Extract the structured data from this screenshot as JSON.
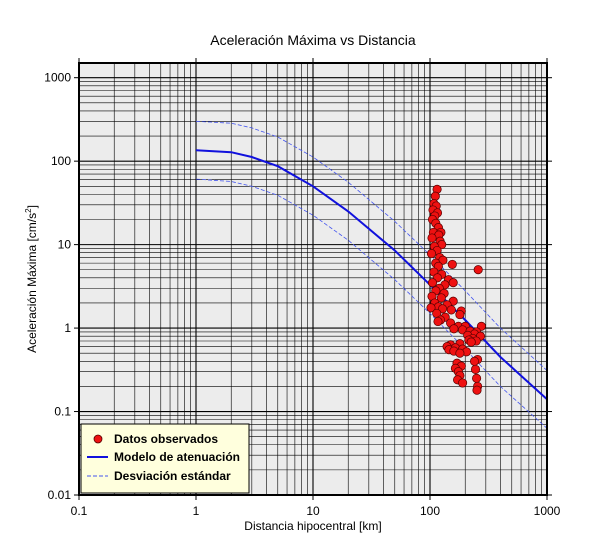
{
  "chart_data": {
    "type": "scatter",
    "title": "Aceleración Máxima vs Distancia",
    "xlabel": "Distancia hipocentral [km]",
    "ylabel_main": "Aceleración Máxima [cm/s",
    "ylabel_sup": "2",
    "ylabel_end": "]",
    "x_scale": "log",
    "y_scale": "log",
    "xlim": [
      0.1,
      1000
    ],
    "ylim": [
      0.01,
      1500
    ],
    "x_ticks": [
      {
        "value": 0.1,
        "label": "0.1"
      },
      {
        "value": 1,
        "label": "1"
      },
      {
        "value": 10,
        "label": "10"
      },
      {
        "value": 100,
        "label": "100"
      },
      {
        "value": 1000,
        "label": "1000"
      }
    ],
    "y_ticks": [
      {
        "value": 0.01,
        "label": "0.01"
      },
      {
        "value": 0.1,
        "label": "0.1"
      },
      {
        "value": 1,
        "label": "1"
      },
      {
        "value": 10,
        "label": "10"
      },
      {
        "value": 100,
        "label": "100"
      },
      {
        "value": 1000,
        "label": "1000"
      }
    ],
    "grid": true,
    "legend_position": "bottom-left",
    "colors": {
      "plot_background": "#ececec",
      "points": "#ee1111",
      "model": "#1111dd",
      "deviation": "#4455ee",
      "legend_background": "#ffffdd"
    },
    "series": [
      {
        "name": "Datos observados",
        "kind": "points",
        "points": [
          [
            115,
            46
          ],
          [
            111,
            38
          ],
          [
            108,
            31
          ],
          [
            113,
            29
          ],
          [
            106,
            26
          ],
          [
            116,
            24
          ],
          [
            110,
            22
          ],
          [
            105,
            20
          ],
          [
            112,
            18
          ],
          [
            118,
            16
          ],
          [
            107,
            14
          ],
          [
            124,
            14
          ],
          [
            119,
            13
          ],
          [
            104,
            12
          ],
          [
            122,
            11
          ],
          [
            126,
            10
          ],
          [
            109,
            9.5
          ],
          [
            115,
            8.5
          ],
          [
            103,
            7.8
          ],
          [
            121,
            7
          ],
          [
            129,
            6.5
          ],
          [
            112,
            6
          ],
          [
            118,
            5.5
          ],
          [
            155,
            5.8
          ],
          [
            258,
            5
          ],
          [
            108,
            4.7
          ],
          [
            126,
            4.4
          ],
          [
            116,
            4
          ],
          [
            144,
            3.8
          ],
          [
            105,
            3.5
          ],
          [
            134,
            3.3
          ],
          [
            158,
            3.5
          ],
          [
            120,
            3
          ],
          [
            112,
            2.8
          ],
          [
            132,
            2.6
          ],
          [
            104,
            2.4
          ],
          [
            125,
            2.3
          ],
          [
            158,
            2.1
          ],
          [
            110,
            2
          ],
          [
            140,
            1.9
          ],
          [
            118,
            1.8
          ],
          [
            102,
            1.75
          ],
          [
            128,
            1.7
          ],
          [
            152,
            1.65
          ],
          [
            185,
            1.6
          ],
          [
            114,
            1.5
          ],
          [
            180,
            1.45
          ],
          [
            135,
            1.35
          ],
          [
            123,
            1.25
          ],
          [
            117,
            1.2
          ],
          [
            150,
            1.15
          ],
          [
            175,
            1.05
          ],
          [
            200,
            1.05
          ],
          [
            275,
            1.05
          ],
          [
            160,
            0.98
          ],
          [
            190,
            0.95
          ],
          [
            220,
            0.92
          ],
          [
            250,
            0.9
          ],
          [
            240,
            0.85
          ],
          [
            210,
            0.82
          ],
          [
            270,
            0.8
          ],
          [
            232,
            0.75
          ],
          [
            215,
            0.72
          ],
          [
            248,
            0.7
          ],
          [
            225,
            0.68
          ],
          [
            180,
            0.65
          ],
          [
            150,
            0.63
          ],
          [
            140,
            0.6
          ],
          [
            165,
            0.58
          ],
          [
            190,
            0.56
          ],
          [
            145,
            0.55
          ],
          [
            160,
            0.53
          ],
          [
            205,
            0.52
          ],
          [
            180,
            0.5
          ],
          [
            255,
            0.42
          ],
          [
            240,
            0.4
          ],
          [
            170,
            0.38
          ],
          [
            185,
            0.35
          ],
          [
            165,
            0.33
          ],
          [
            245,
            0.32
          ],
          [
            175,
            0.3
          ],
          [
            180,
            0.27
          ],
          [
            250,
            0.25
          ],
          [
            172,
            0.24
          ],
          [
            190,
            0.22
          ],
          [
            255,
            0.2
          ],
          [
            252,
            0.18
          ]
        ]
      },
      {
        "name": "Modelo de atenuación",
        "kind": "line",
        "points": [
          [
            1,
            135
          ],
          [
            2,
            128
          ],
          [
            3,
            112
          ],
          [
            5,
            87
          ],
          [
            10,
            50
          ],
          [
            20,
            25
          ],
          [
            50,
            8.5
          ],
          [
            100,
            3.3
          ],
          [
            200,
            1.25
          ],
          [
            400,
            0.45
          ],
          [
            1000,
            0.14
          ]
        ]
      },
      {
        "name": "Desviación estándar",
        "kind": "dashed",
        "points": [
          [
            1,
            300
          ],
          [
            2,
            285
          ],
          [
            3,
            250
          ],
          [
            5,
            195
          ],
          [
            10,
            112
          ],
          [
            20,
            56
          ],
          [
            50,
            19
          ],
          [
            100,
            7.5
          ],
          [
            200,
            2.8
          ],
          [
            400,
            1
          ],
          [
            1000,
            0.31
          ]
        ]
      },
      {
        "kind": "dashed",
        "points": [
          [
            1,
            61
          ],
          [
            2,
            57
          ],
          [
            3,
            50
          ],
          [
            5,
            39
          ],
          [
            10,
            22.5
          ],
          [
            20,
            11.3
          ],
          [
            50,
            3.8
          ],
          [
            100,
            1.5
          ],
          [
            200,
            0.56
          ],
          [
            400,
            0.2
          ],
          [
            1000,
            0.063
          ]
        ]
      }
    ]
  }
}
